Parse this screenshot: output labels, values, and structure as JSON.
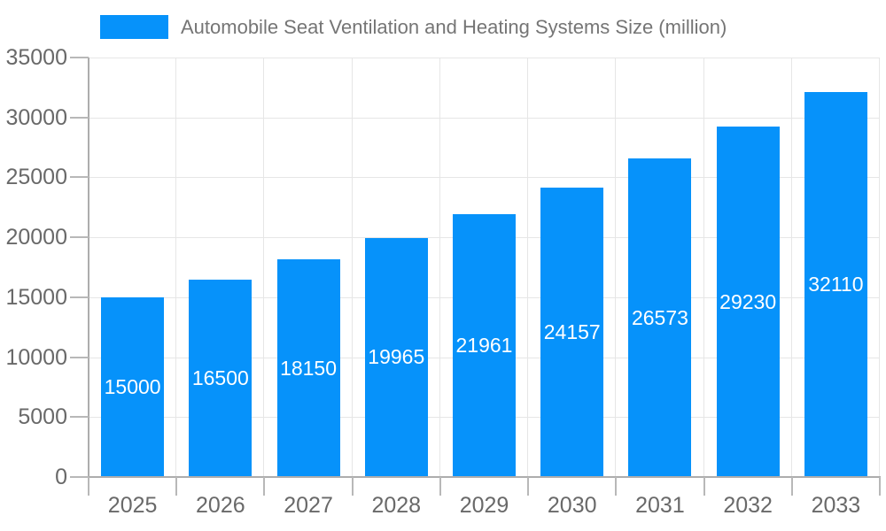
{
  "chart_data": {
    "type": "bar",
    "title": "Automobile Seat Ventilation and Heating Systems Size (million)",
    "categories": [
      "2025",
      "2026",
      "2027",
      "2028",
      "2029",
      "2030",
      "2031",
      "2032",
      "2033"
    ],
    "values": [
      15000,
      16500,
      18150,
      19965,
      21961,
      24157,
      26573,
      29230,
      32110
    ],
    "series_name": "Automobile Seat Ventilation and Heating Systems Size (million)",
    "xlabel": "",
    "ylabel": "",
    "ylim": [
      0,
      35000
    ],
    "ytick_step": 5000,
    "ytick_labels": [
      "0",
      "5000",
      "10000",
      "15000",
      "20000",
      "25000",
      "30000",
      "35000"
    ],
    "grid": "on",
    "legend_position": "top",
    "colors": {
      "bar": "#0692FA",
      "bar_value_text": "#ffffff",
      "grid_line": "#e6e6e6",
      "axis_line": "#adadad",
      "axis_text": "#696969",
      "legend_text": "#757575",
      "background": "#ffffff"
    }
  }
}
